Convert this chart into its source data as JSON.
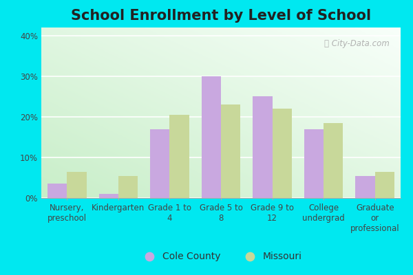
{
  "title": "School Enrollment by Level of School",
  "categories": [
    "Nursery,\npreschool",
    "Kindergarten",
    "Grade 1 to\n4",
    "Grade 5 to\n8",
    "Grade 9 to\n12",
    "College\nundergrad",
    "Graduate\nor\nprofessional"
  ],
  "cole_county": [
    3.5,
    1.0,
    17.0,
    30.0,
    25.0,
    17.0,
    5.5
  ],
  "missouri": [
    6.5,
    5.5,
    20.5,
    23.0,
    22.0,
    18.5,
    6.5
  ],
  "cole_color": "#c9a8e0",
  "missouri_color": "#c8d89a",
  "ylim": [
    0,
    42
  ],
  "yticks": [
    0,
    10,
    20,
    30,
    40
  ],
  "ytick_labels": [
    "0%",
    "10%",
    "20%",
    "30%",
    "40%"
  ],
  "legend_cole": "Cole County",
  "legend_missouri": "Missouri",
  "outer_bg": "#00e8f0",
  "plot_bg_top_right": "#f8fffa",
  "plot_bg_bottom_left": "#c8eec8",
  "bar_width": 0.38,
  "title_fontsize": 15,
  "tick_fontsize": 8.5,
  "legend_fontsize": 10,
  "watermark": "City-Data.com"
}
